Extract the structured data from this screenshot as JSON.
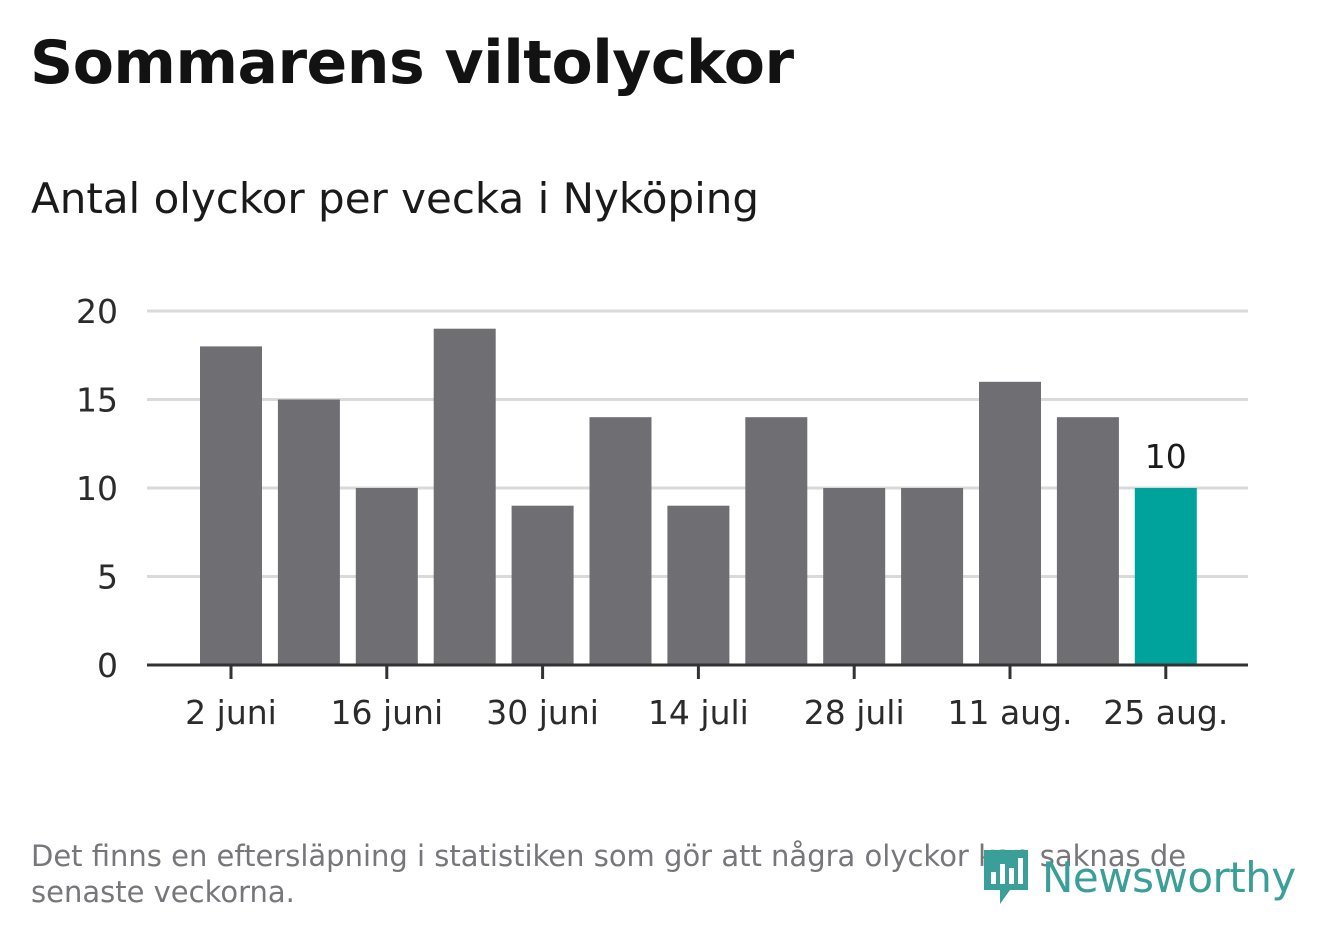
{
  "title": "Sommarens viltolyckor",
  "subtitle": "Antal olyckor per vecka i Nyköping",
  "footnote": {
    "line1": "Det finns en eftersläpning i statistiken som gör att några olyckor kan saknas de",
    "line2": "senaste veckorna."
  },
  "brand": {
    "name": "Newsworthy",
    "icon": "newsworthy-logo-icon",
    "color": "#3a9f98"
  },
  "colors": {
    "bar": "#6f6e73",
    "highlight": "#00a39b",
    "grid": "#dadada",
    "axis": "#333333",
    "text": "#2b2b2b"
  },
  "chart_data": {
    "type": "bar",
    "title": "Sommarens viltolyckor",
    "subtitle": "Antal olyckor per vecka i Nyköping",
    "xlabel": "",
    "ylabel": "",
    "ylim": [
      0,
      20
    ],
    "yticks": [
      0,
      5,
      10,
      15,
      20
    ],
    "grid": true,
    "xtick_labels": [
      "2 juni",
      "16 juni",
      "30 juni",
      "14 juli",
      "28 juli",
      "11 aug.",
      "25 aug."
    ],
    "xtick_bar_index": [
      0,
      2,
      4,
      6,
      8,
      10,
      12
    ],
    "values": [
      18,
      15,
      10,
      19,
      9,
      14,
      9,
      14,
      10,
      10,
      16,
      14,
      10
    ],
    "highlight_index": 12,
    "annotations": [
      {
        "bar_index": 12,
        "text": "10"
      }
    ]
  }
}
